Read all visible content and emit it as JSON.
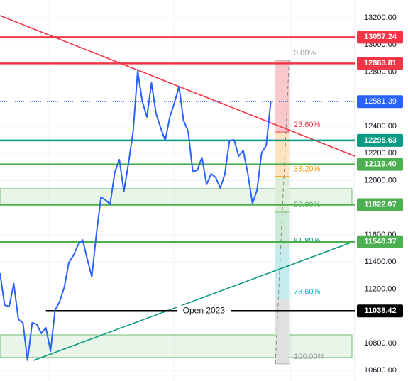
{
  "chart_data": {
    "type": "line",
    "xlim": [
      0,
      77.3
    ],
    "ylim": [
      10522,
      13331
    ],
    "yticks": [
      {
        "value": 13200,
        "label": "13200.00"
      },
      {
        "value": 13000,
        "label": "13000.00"
      },
      {
        "value": 12800,
        "label": "12800.00"
      },
      {
        "value": 12400,
        "label": "12400.00"
      },
      {
        "value": 12200,
        "label": "12200.00"
      },
      {
        "value": 12000,
        "label": "12000.00"
      },
      {
        "value": 11600,
        "label": "11600.00"
      },
      {
        "value": 11400,
        "label": "11400.00"
      },
      {
        "value": 11200,
        "label": "11200.00"
      },
      {
        "value": 10800,
        "label": "10800.00"
      },
      {
        "value": 10600,
        "label": "10600.00"
      }
    ],
    "grid": true,
    "series": [
      {
        "color": "#2962ff",
        "values": [
          11317,
          11082,
          11071,
          11239,
          10977,
          10951,
          10674,
          10951,
          10941,
          10873,
          10914,
          10742,
          11045,
          11108,
          11213,
          11396,
          11448,
          11526,
          11563,
          11422,
          11291,
          11605,
          11877,
          11856,
          11825,
          12060,
          12154,
          11919,
          12128,
          12363,
          12808,
          12583,
          12468,
          12719,
          12494,
          12389,
          12295,
          12468,
          12572,
          12693,
          12442,
          12363,
          12065,
          12076,
          12170,
          11971,
          12049,
          12023,
          11945,
          12049,
          12295,
          12300,
          12180,
          12222,
          12049,
          11830,
          11929,
          12206,
          12259,
          12581
        ]
      }
    ],
    "zones": [
      {
        "top": 11940,
        "bottom": 11822
      },
      {
        "top": 10862,
        "bottom": 10695
      }
    ],
    "trendlines": [
      {
        "color": "#f23645",
        "x": [
          0,
          77.3
        ],
        "values": [
          13216,
          12180
        ]
      },
      {
        "color": "#089981",
        "x": [
          7.3,
          77.3
        ],
        "values": [
          10674,
          11553
        ]
      }
    ],
    "fib": {
      "x": [
        60,
        63
      ],
      "high": 12886,
      "low": 10648,
      "levels": [
        {
          "value": 0,
          "label": "0.00%",
          "color": "#9e9e9e",
          "fill": "#f8c8cb"
        },
        {
          "value": 23.6,
          "label": "23.60%",
          "color": "#f23645",
          "fill": "#fde3c0"
        },
        {
          "value": 38.2,
          "label": "38.20%",
          "color": "#ff9800",
          "fill": "#dcefd6"
        },
        {
          "value": 50,
          "label": "50.00%",
          "color": "#4caf50",
          "fill": "#cbead8"
        },
        {
          "value": 61.8,
          "label": "61.80%",
          "color": "#089981",
          "fill": "#c6ebef"
        },
        {
          "value": 78.6,
          "label": "78.60%",
          "color": "#00bcd4",
          "fill": "#e0e0e0"
        },
        {
          "value": 100,
          "label": "100.00%",
          "color": "#9e9e9e"
        }
      ]
    },
    "price_lines": [
      {
        "value": 13057.24,
        "label": "13057.24",
        "color": "#f23645"
      },
      {
        "value": 12863.81,
        "label": "12863.81",
        "color": "#f23645"
      },
      {
        "value": 12295.63,
        "label": "12295.63",
        "color": "#089981"
      },
      {
        "value": 12119.4,
        "label": "12119.40",
        "color": "#4caf50"
      },
      {
        "value": 11822.07,
        "label": "11822.07",
        "color": "#4caf50"
      },
      {
        "value": 11548.37,
        "label": "11548.37",
        "color": "#4caf50"
      },
      {
        "value": 11038.42,
        "label": "11038.42",
        "color": "#000000",
        "x": [
          10,
          77.3
        ],
        "annotation": "Open 2023"
      }
    ],
    "last_price": {
      "value": 12581.39,
      "label": "12581.39",
      "color": "#2962ff"
    }
  }
}
